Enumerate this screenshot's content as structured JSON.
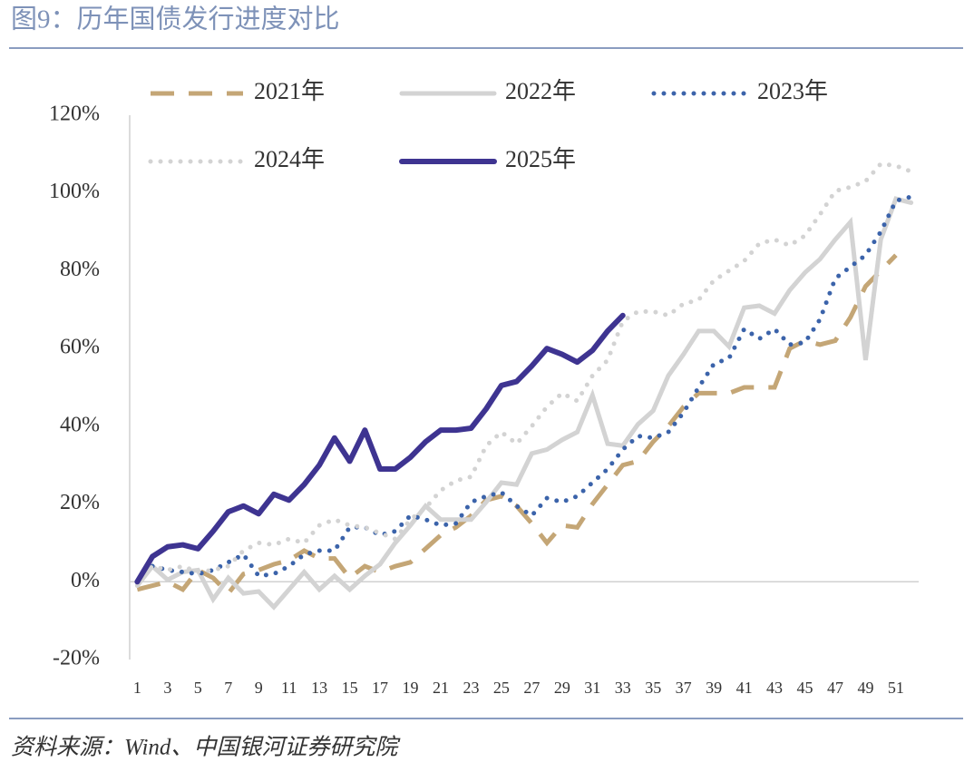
{
  "chart_data": {
    "type": "line",
    "title": "图9：历年国债发行进度对比",
    "source": "资料来源：Wind、中国银河证券研究院",
    "categories": [
      1,
      null,
      3,
      null,
      5,
      null,
      7,
      null,
      9,
      null,
      11,
      null,
      13,
      null,
      15,
      null,
      17,
      null,
      19,
      null,
      21,
      null,
      23,
      null,
      25,
      null,
      27,
      null,
      29,
      null,
      31,
      null,
      33,
      null,
      35,
      null,
      37,
      null,
      39,
      null,
      41,
      null,
      43,
      null,
      45,
      null,
      47,
      null,
      49,
      null,
      51,
      null
    ],
    "ylim": [
      -20,
      120
    ],
    "yticks": [
      {
        "value": -20,
        "label": "-20%"
      },
      {
        "value": 0,
        "label": "0%"
      },
      {
        "value": 20,
        "label": "20%"
      },
      {
        "value": 40,
        "label": "40%"
      },
      {
        "value": 60,
        "label": "60%"
      },
      {
        "value": 80,
        "label": "80%"
      },
      {
        "value": 100,
        "label": "100%"
      },
      {
        "value": 120,
        "label": "120%"
      }
    ],
    "series": [
      {
        "name": "2021年",
        "color": "#c4a676",
        "style": "dashed",
        "values": [
          -2,
          -1,
          0,
          -2,
          3,
          1,
          -3,
          2,
          3,
          4.5,
          5.5,
          8,
          6,
          6,
          1,
          4,
          2.5,
          4,
          5,
          8.5,
          12,
          14,
          17,
          21,
          22,
          19.5,
          15,
          10,
          14.5,
          14,
          20,
          25,
          30,
          31,
          36,
          40,
          45,
          48.5,
          48.5,
          48.5,
          50,
          50,
          50,
          60,
          62,
          61,
          62,
          68,
          76,
          80,
          84,
          null
        ]
      },
      {
        "name": "2022年",
        "color": "#d3d3d3",
        "style": "solid",
        "values": [
          -1,
          4,
          0.5,
          2.5,
          3,
          -4.5,
          1,
          -3,
          -2.5,
          -6.5,
          -2,
          2.5,
          -2,
          1.5,
          -2,
          1.5,
          4.5,
          10,
          14.5,
          19.5,
          16,
          16,
          16,
          20.5,
          25.5,
          25,
          33,
          34,
          36.5,
          38.5,
          48,
          35.5,
          35,
          40.5,
          44,
          53,
          58.5,
          64.5,
          64.5,
          60.5,
          70.5,
          71,
          69,
          75,
          79.5,
          83,
          88,
          92.5,
          57,
          88,
          98.5,
          97.5
        ]
      },
      {
        "name": "2023年",
        "color": "#3b63aa",
        "style": "dotted",
        "values": [
          null,
          4,
          3,
          2.5,
          2,
          3,
          5,
          7,
          1.5,
          2,
          4,
          7,
          8,
          8,
          14,
          14,
          12,
          13,
          17,
          16,
          14.5,
          15,
          20.5,
          22,
          23,
          19.5,
          17,
          21.5,
          20.5,
          22,
          25.5,
          29,
          34,
          37.5,
          37,
          38.5,
          43.5,
          50,
          56,
          57.5,
          65,
          62.5,
          65,
          61,
          61.5,
          67.5,
          78,
          81,
          84,
          90,
          98,
          99
        ]
      },
      {
        "name": "2024年",
        "color": "#d3d3d3",
        "style": "dotted",
        "values": [
          0,
          4,
          3,
          4,
          2.5,
          3,
          4,
          8,
          10,
          9.5,
          11,
          10,
          14.5,
          16,
          14.5,
          14,
          12.5,
          11,
          16,
          19,
          23.5,
          26,
          27,
          35,
          38.5,
          35.5,
          40,
          45,
          48.5,
          46.5,
          53,
          57,
          67,
          69.5,
          69.5,
          68.5,
          71.5,
          72.5,
          77.5,
          80,
          82.5,
          87,
          88,
          86.5,
          89,
          94.5,
          100.5,
          101.5,
          103,
          107.5,
          107,
          105.5
        ]
      },
      {
        "name": "2025年",
        "color": "#3e3491",
        "style": "thick",
        "values": [
          0,
          6.5,
          9,
          9.5,
          8.5,
          13,
          18,
          19.5,
          17.5,
          22.5,
          21,
          25,
          30,
          37,
          31,
          39,
          29,
          29,
          32,
          36,
          39,
          39,
          39.5,
          44.5,
          50.5,
          51.5,
          55.5,
          60,
          58.5,
          56.5,
          59.5,
          64.5,
          68.5,
          null,
          null,
          null,
          null,
          null,
          null,
          null,
          null,
          null,
          null,
          null,
          null,
          null,
          null,
          null,
          null,
          null,
          null,
          null
        ]
      }
    ]
  }
}
